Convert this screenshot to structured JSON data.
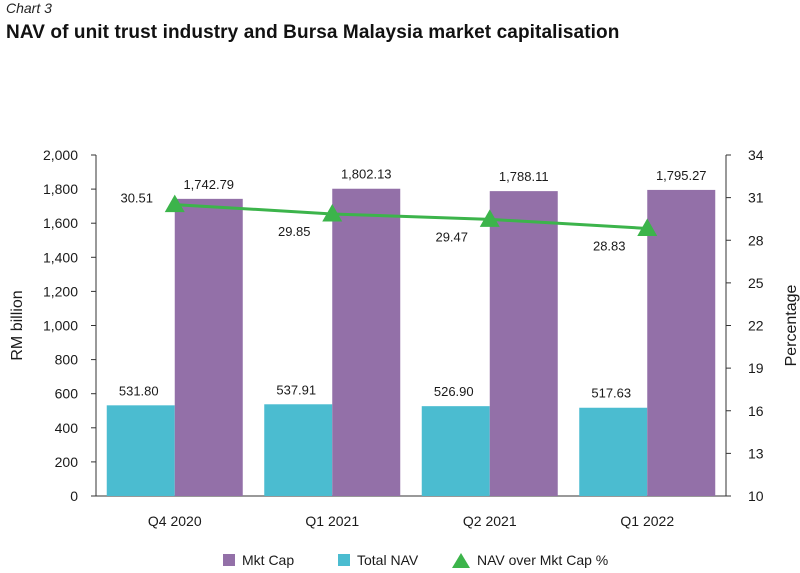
{
  "header": {
    "chart_label": "Chart 3",
    "title": "NAV of unit trust industry and Bursa Malaysia market capitalisation"
  },
  "colors": {
    "mkt_cap": "#9370a8",
    "total_nav": "#4bbcd0",
    "ratio_line": "#3cb44b",
    "axis": "#333333"
  },
  "chart_data": {
    "type": "bar",
    "categories": [
      "Q4 2020",
      "Q1 2021",
      "Q2 2021",
      "Q1 2022"
    ],
    "series": [
      {
        "name": "Total NAV",
        "type": "bar",
        "axis": "left",
        "values": [
          531.8,
          537.91,
          526.9,
          517.63
        ],
        "labels": [
          "531.80",
          "537.91",
          "526.90",
          "517.63"
        ]
      },
      {
        "name": "Mkt Cap",
        "type": "bar",
        "axis": "left",
        "values": [
          1742.79,
          1802.13,
          1788.11,
          1795.27
        ],
        "labels": [
          "1,742.79",
          "1,802.13",
          "1,788.11",
          "1,795.27"
        ]
      },
      {
        "name": "NAV over Mkt Cap %",
        "type": "line",
        "axis": "right",
        "marker": "triangle",
        "values": [
          30.51,
          29.85,
          29.47,
          28.83
        ],
        "labels": [
          "30.51",
          "29.85",
          "29.47",
          "28.83"
        ]
      }
    ],
    "ylabel": "RM billion",
    "ylim": [
      0,
      2000
    ],
    "yticks": [
      "0",
      "200",
      "400",
      "600",
      "800",
      "1,000",
      "1,200",
      "1,400",
      "1,600",
      "1,800",
      "2,000"
    ],
    "y2label": "Percentage",
    "y2lim": [
      10,
      34
    ],
    "y2ticks": [
      "10",
      "13",
      "16",
      "19",
      "22",
      "25",
      "28",
      "31",
      "34"
    ],
    "grid": false,
    "legend_position": "bottom"
  },
  "legend": {
    "mkt_cap": "Mkt Cap",
    "total_nav": "Total NAV",
    "ratio": "NAV over Mkt Cap %"
  }
}
